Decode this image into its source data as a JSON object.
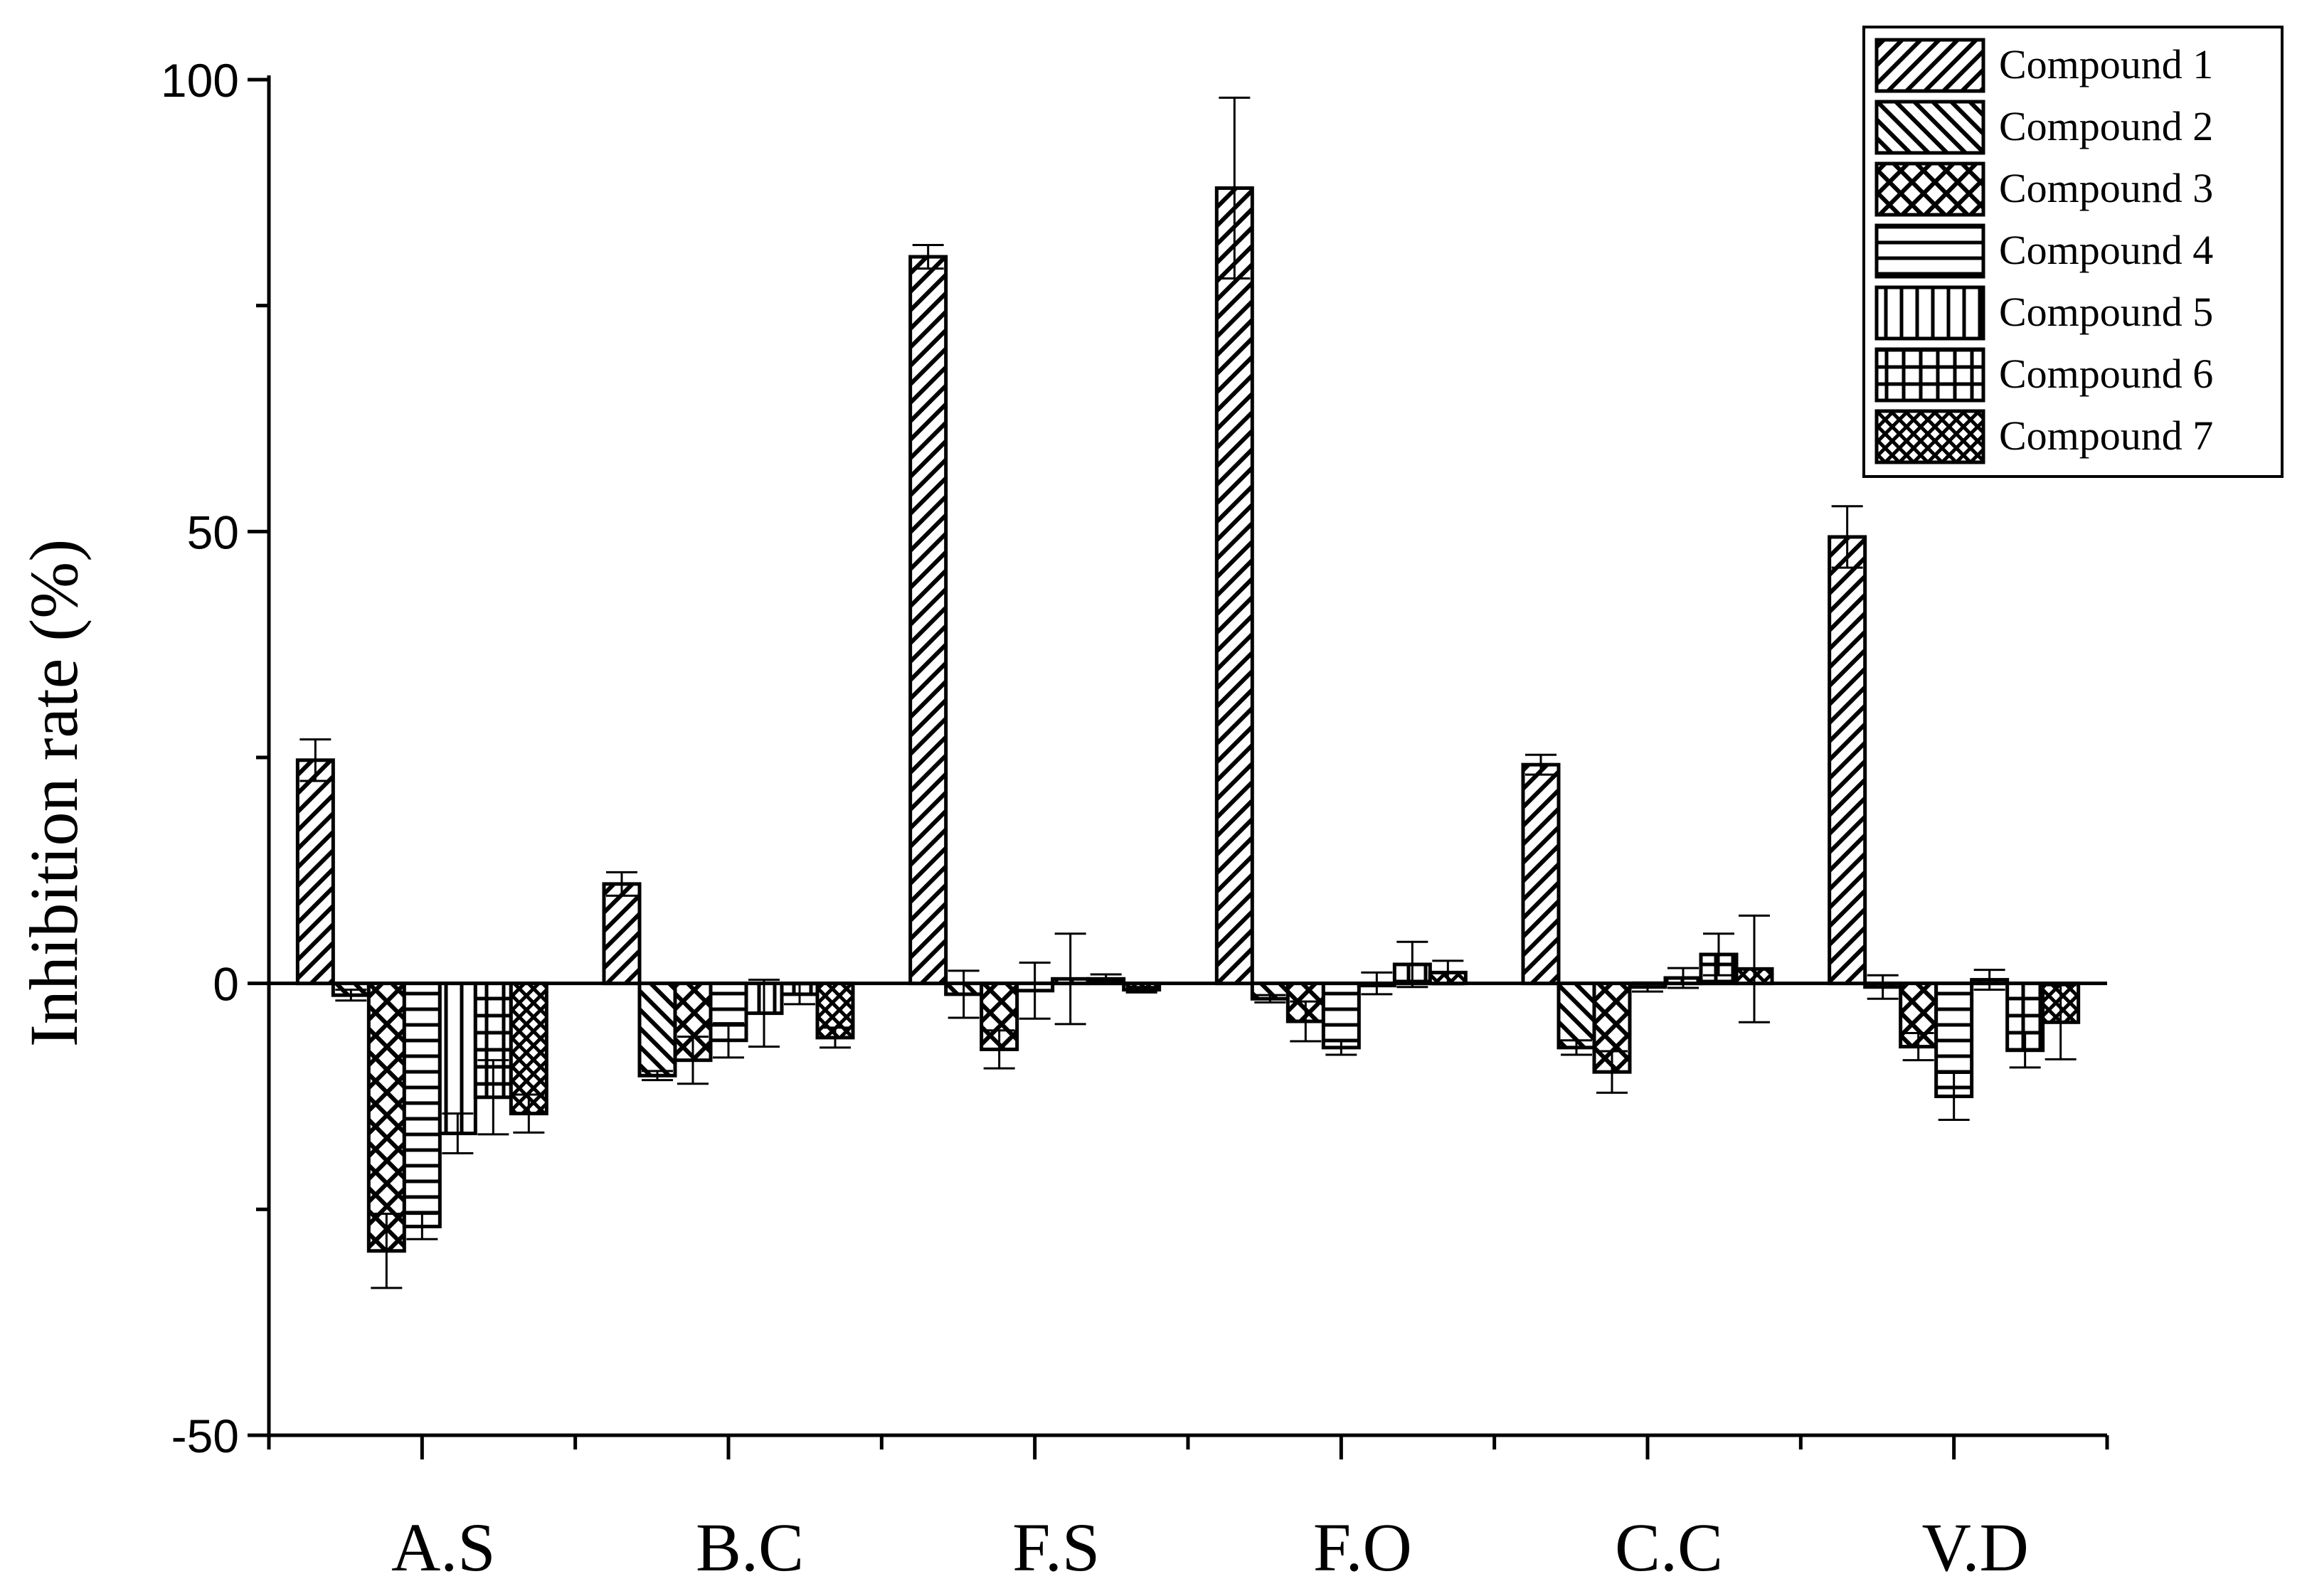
{
  "chart_data": {
    "type": "bar",
    "title": "",
    "xlabel": "",
    "ylabel": "Inhibition rate (%)",
    "ylim": [
      -50,
      100
    ],
    "yticks": [
      "-50",
      "0",
      "50",
      "100"
    ],
    "categories": [
      "A.S",
      "B.C",
      "F.S",
      "F.O",
      "C.C",
      "V.D"
    ],
    "legend_position": "top-right",
    "grid": false,
    "series": [
      {
        "name": "Compound 1",
        "pattern": "diag-up",
        "values": [
          24.7,
          11.0,
          80.4,
          88.0,
          24.2,
          49.4
        ],
        "errors": [
          2.3,
          1.3,
          1.3,
          10.0,
          1.1,
          3.4
        ]
      },
      {
        "name": "Compound 2",
        "pattern": "diag-down",
        "values": [
          -1.3,
          -10.2,
          -1.2,
          -1.7,
          -7.1,
          -0.4
        ],
        "errors": [
          0.6,
          0.5,
          2.6,
          0.4,
          0.8,
          1.3
        ]
      },
      {
        "name": "Compound 3",
        "pattern": "crosshatch-diag",
        "values": [
          -29.6,
          -8.5,
          -7.3,
          -4.2,
          -9.8,
          -7.0
        ],
        "errors": [
          4.1,
          2.6,
          2.1,
          2.2,
          2.3,
          1.5
        ]
      },
      {
        "name": "Compound 4",
        "pattern": "horizontal",
        "values": [
          -26.9,
          -6.3,
          -0.8,
          -7.1,
          -0.4,
          -12.5
        ],
        "errors": [
          1.4,
          1.9,
          3.1,
          0.8,
          0.5,
          2.6
        ]
      },
      {
        "name": "Compound 5",
        "pattern": "vertical",
        "values": [
          -16.6,
          -3.3,
          0.5,
          0.0,
          0.6,
          0.4
        ],
        "errors": [
          2.2,
          3.7,
          5.0,
          1.2,
          1.1,
          1.1
        ]
      },
      {
        "name": "Compound 6",
        "pattern": "grid",
        "values": [
          -12.6,
          -1.2,
          0.5,
          2.1,
          3.2,
          -7.4
        ],
        "errors": [
          4.1,
          1.1,
          0.5,
          2.5,
          2.3,
          1.9
        ]
      },
      {
        "name": "Compound 7",
        "pattern": "crosshatch-dense",
        "values": [
          -14.4,
          -6.0,
          -0.7,
          1.2,
          1.6,
          -4.3
        ],
        "errors": [
          2.1,
          1.1,
          0.3,
          1.3,
          5.9,
          4.1
        ]
      }
    ]
  }
}
